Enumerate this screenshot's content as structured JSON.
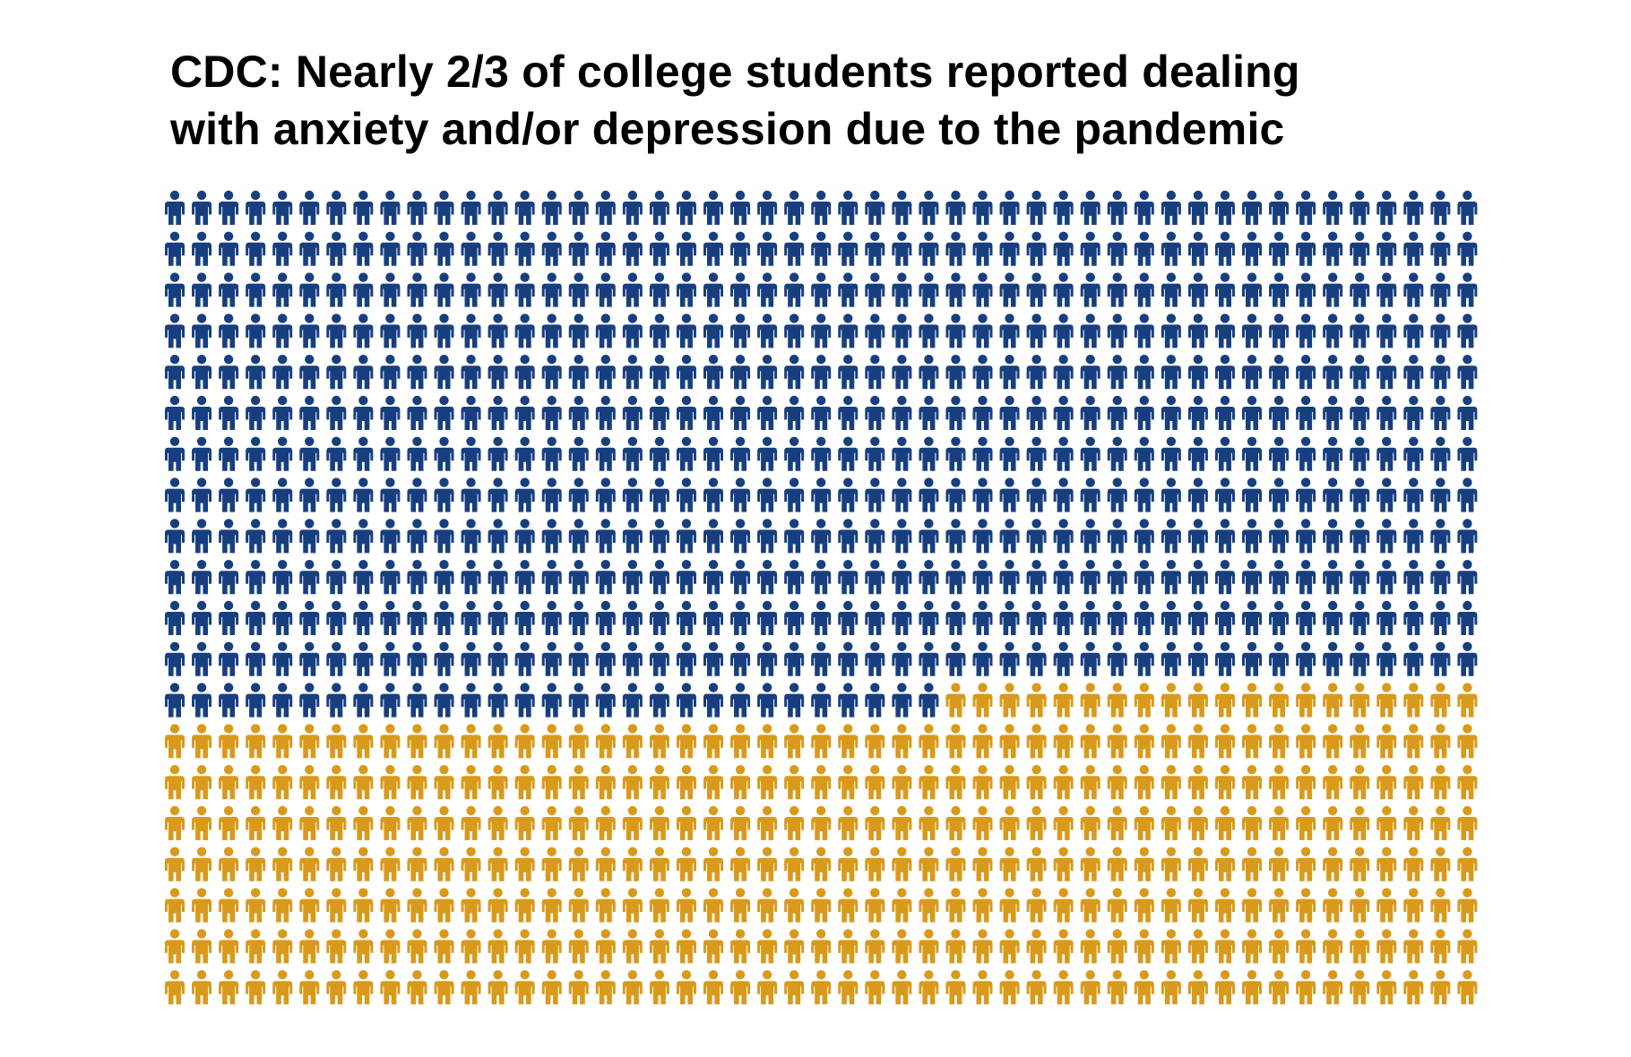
{
  "chart_data": {
    "type": "pictograph",
    "title_lines": [
      "CDC: Nearly 2/3 of college students reported dealing",
      "with anxiety and/or depression due to the pandemic"
    ],
    "rows": 20,
    "columns": 49,
    "series": [
      {
        "count": 617,
        "color": "#173f80"
      },
      {
        "count": 363,
        "color": "#d99a1b"
      }
    ]
  }
}
